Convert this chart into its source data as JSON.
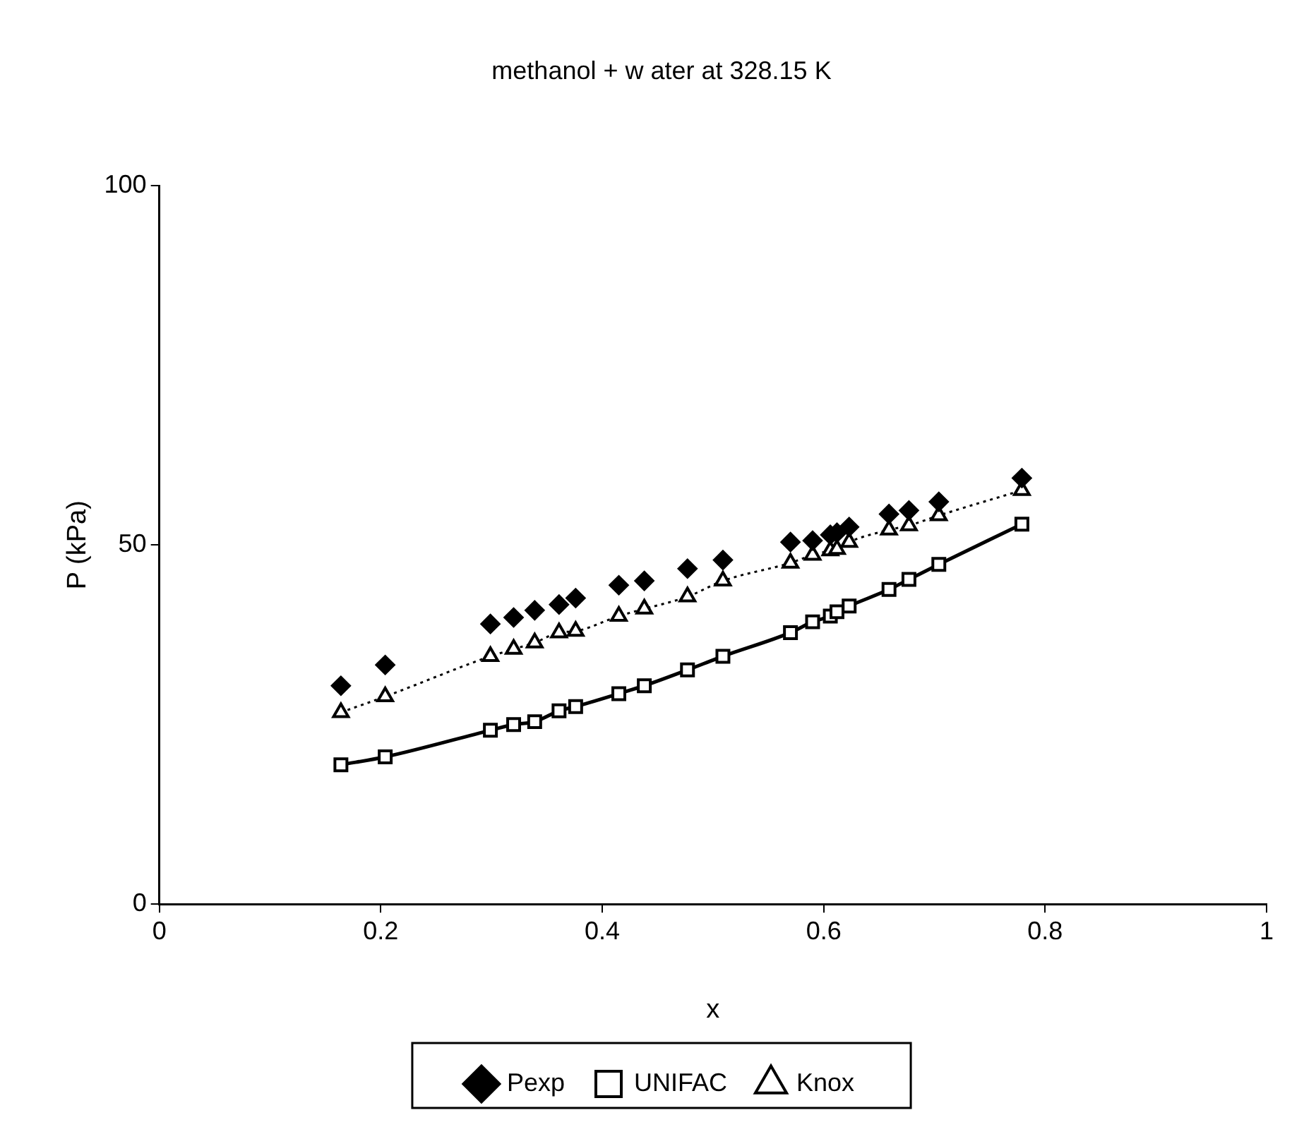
{
  "chart_data": {
    "type": "scatter",
    "title": "methanol + w ater at 328.15 K",
    "xlabel": "x",
    "ylabel": "P (kPa)",
    "xlim": [
      0,
      1
    ],
    "xticks": [
      0,
      0.2,
      0.4,
      0.6,
      0.8,
      1
    ],
    "ylim": [
      0,
      100
    ],
    "yticks": [
      0,
      50,
      100
    ],
    "grid": false,
    "legend": "bottom",
    "x": [
      0.164,
      0.204,
      0.299,
      0.32,
      0.339,
      0.361,
      0.376,
      0.415,
      0.438,
      0.477,
      0.509,
      0.57,
      0.59,
      0.606,
      0.612,
      0.623,
      0.659,
      0.677,
      0.704,
      0.779
    ],
    "series": [
      {
        "name": "Pexp",
        "color": "#000000",
        "marker": "diamond",
        "values": [
          30.4,
          33.3,
          39.0,
          39.9,
          40.9,
          41.7,
          42.6,
          44.4,
          45.0,
          46.7,
          47.9,
          50.4,
          50.6,
          51.4,
          51.7,
          52.5,
          54.3,
          54.8,
          56.0,
          59.3
        ]
      },
      {
        "name": "UNIFAC",
        "type": "line",
        "color": "#000000",
        "marker": "square",
        "line_style": "solid",
        "values": [
          19.4,
          20.5,
          24.2,
          25.0,
          25.4,
          26.9,
          27.5,
          29.3,
          30.4,
          32.6,
          34.5,
          37.8,
          39.3,
          40.1,
          40.7,
          41.5,
          43.8,
          45.2,
          47.3,
          52.9
        ]
      },
      {
        "name": "Knox",
        "type": "line",
        "color": "#000000",
        "marker": "triangle",
        "line_style": "dotted",
        "values": [
          26.7,
          28.9,
          34.5,
          35.5,
          36.4,
          37.8,
          38.0,
          40.1,
          41.1,
          42.8,
          45.0,
          47.5,
          48.6,
          49.2,
          49.4,
          50.4,
          52.1,
          52.7,
          54.1,
          57.6
        ]
      }
    ]
  }
}
